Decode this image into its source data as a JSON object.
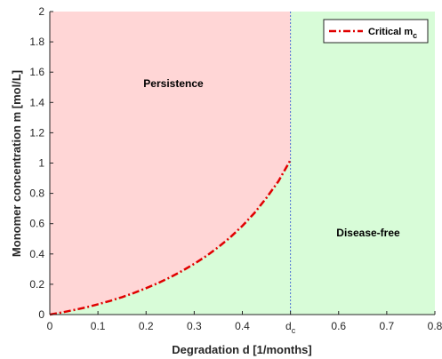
{
  "chart_data": {
    "type": "area",
    "xlabel": "Degradation d [1/months]",
    "ylabel": "Monomer concentration m [mol/L]",
    "xlim": [
      0,
      0.8
    ],
    "ylim": [
      0,
      2
    ],
    "x_ticks": [
      "0",
      "0.1",
      "0.2",
      "0.3",
      "0.4",
      "d",
      "0.6",
      "0.7",
      "0.8"
    ],
    "x_tick_values": [
      0,
      0.1,
      0.2,
      0.3,
      0.4,
      0.5,
      0.6,
      0.7,
      0.8
    ],
    "dc_tick": {
      "base": "d",
      "subscript": "c"
    },
    "y_ticks": [
      "0",
      "0.2",
      "0.4",
      "0.6",
      "0.8",
      "1",
      "1.2",
      "1.4",
      "1.6",
      "1.8",
      "2"
    ],
    "y_tick_values": [
      0,
      0.2,
      0.4,
      0.6,
      0.8,
      1.0,
      1.2,
      1.4,
      1.6,
      1.8,
      2.0
    ],
    "grid": false,
    "critical_d": 0.5,
    "series": [
      {
        "name": "Critical m",
        "name_subscript": "c",
        "style": "dash-dot",
        "color": "#e00000",
        "x": [
          0,
          0.025,
          0.05,
          0.075,
          0.1,
          0.125,
          0.15,
          0.175,
          0.2,
          0.225,
          0.25,
          0.275,
          0.3,
          0.325,
          0.35,
          0.375,
          0.4,
          0.425,
          0.45,
          0.475,
          0.5
        ],
        "y": [
          0.0,
          0.014,
          0.03,
          0.047,
          0.068,
          0.09,
          0.115,
          0.143,
          0.174,
          0.208,
          0.246,
          0.288,
          0.335,
          0.386,
          0.445,
          0.51,
          0.585,
          0.67,
          0.77,
          0.88,
          1.02
        ]
      }
    ],
    "regions": [
      {
        "label": "Persistence",
        "color": "#ffd6d6"
      },
      {
        "label": "Disease-free",
        "color": "#d8fcd8"
      }
    ],
    "legend": {
      "position": "top-right"
    }
  },
  "colors": {
    "persistence_fill": "#ffd6d6",
    "disease_free_fill": "#d8fcd8",
    "curve": "#e00000",
    "critical_line": "#4a6fd6",
    "axis": "#262626"
  }
}
